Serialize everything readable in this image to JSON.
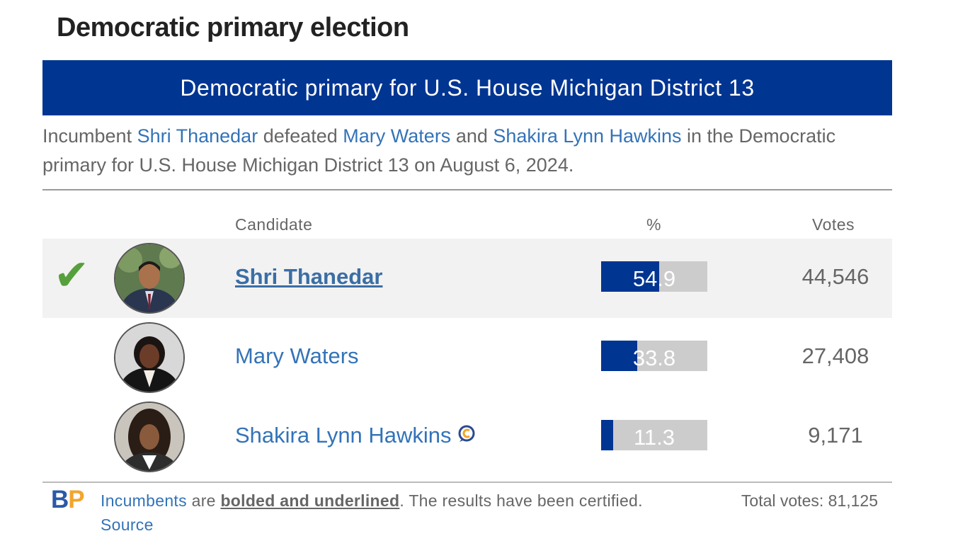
{
  "title": "Democratic primary election",
  "banner": "Democratic primary for U.S. House Michigan District 13",
  "summary": {
    "lead": "Incumbent ",
    "winner": "Shri Thanedar",
    "mid1": " defeated ",
    "loser1": "Mary Waters",
    "mid2": " and ",
    "loser2": "Shakira Lynn Hawkins",
    "tail": " in the Democratic primary for U.S. House Michigan District 13 on August 6, 2024."
  },
  "columns": {
    "candidate": "Candidate",
    "percent": "%",
    "votes": "Votes"
  },
  "candidates": [
    {
      "name": "Shri Thanedar",
      "percent": "54.9",
      "percent_value": 54.9,
      "votes": "44,546",
      "winner": true,
      "incumbent": true,
      "winner_mark": "✔"
    },
    {
      "name": "Mary Waters",
      "percent": "33.8",
      "percent_value": 33.8,
      "votes": "27,408",
      "winner": false,
      "incumbent": false
    },
    {
      "name": "Shakira Lynn Hawkins",
      "percent": "11.3",
      "percent_value": 11.3,
      "votes": "9,171",
      "winner": false,
      "incumbent": false,
      "badge_icon": "candidate-connection-icon"
    }
  ],
  "footer": {
    "logo_b": "B",
    "logo_p": "P",
    "incumbents_link": "Incumbents",
    "are": " are ",
    "bolded": "bolded and underlined",
    "rest": ". The results have been certified. ",
    "source_link": "Source",
    "total_votes": "Total votes: 81,125"
  },
  "colors": {
    "banner_bg": "#003592",
    "bar_fill": "#003592",
    "bar_track": "#cccccc",
    "link": "#3373b8",
    "check": "#55a03c",
    "logo_b": "#2b59a8",
    "logo_p": "#f2a52d"
  }
}
